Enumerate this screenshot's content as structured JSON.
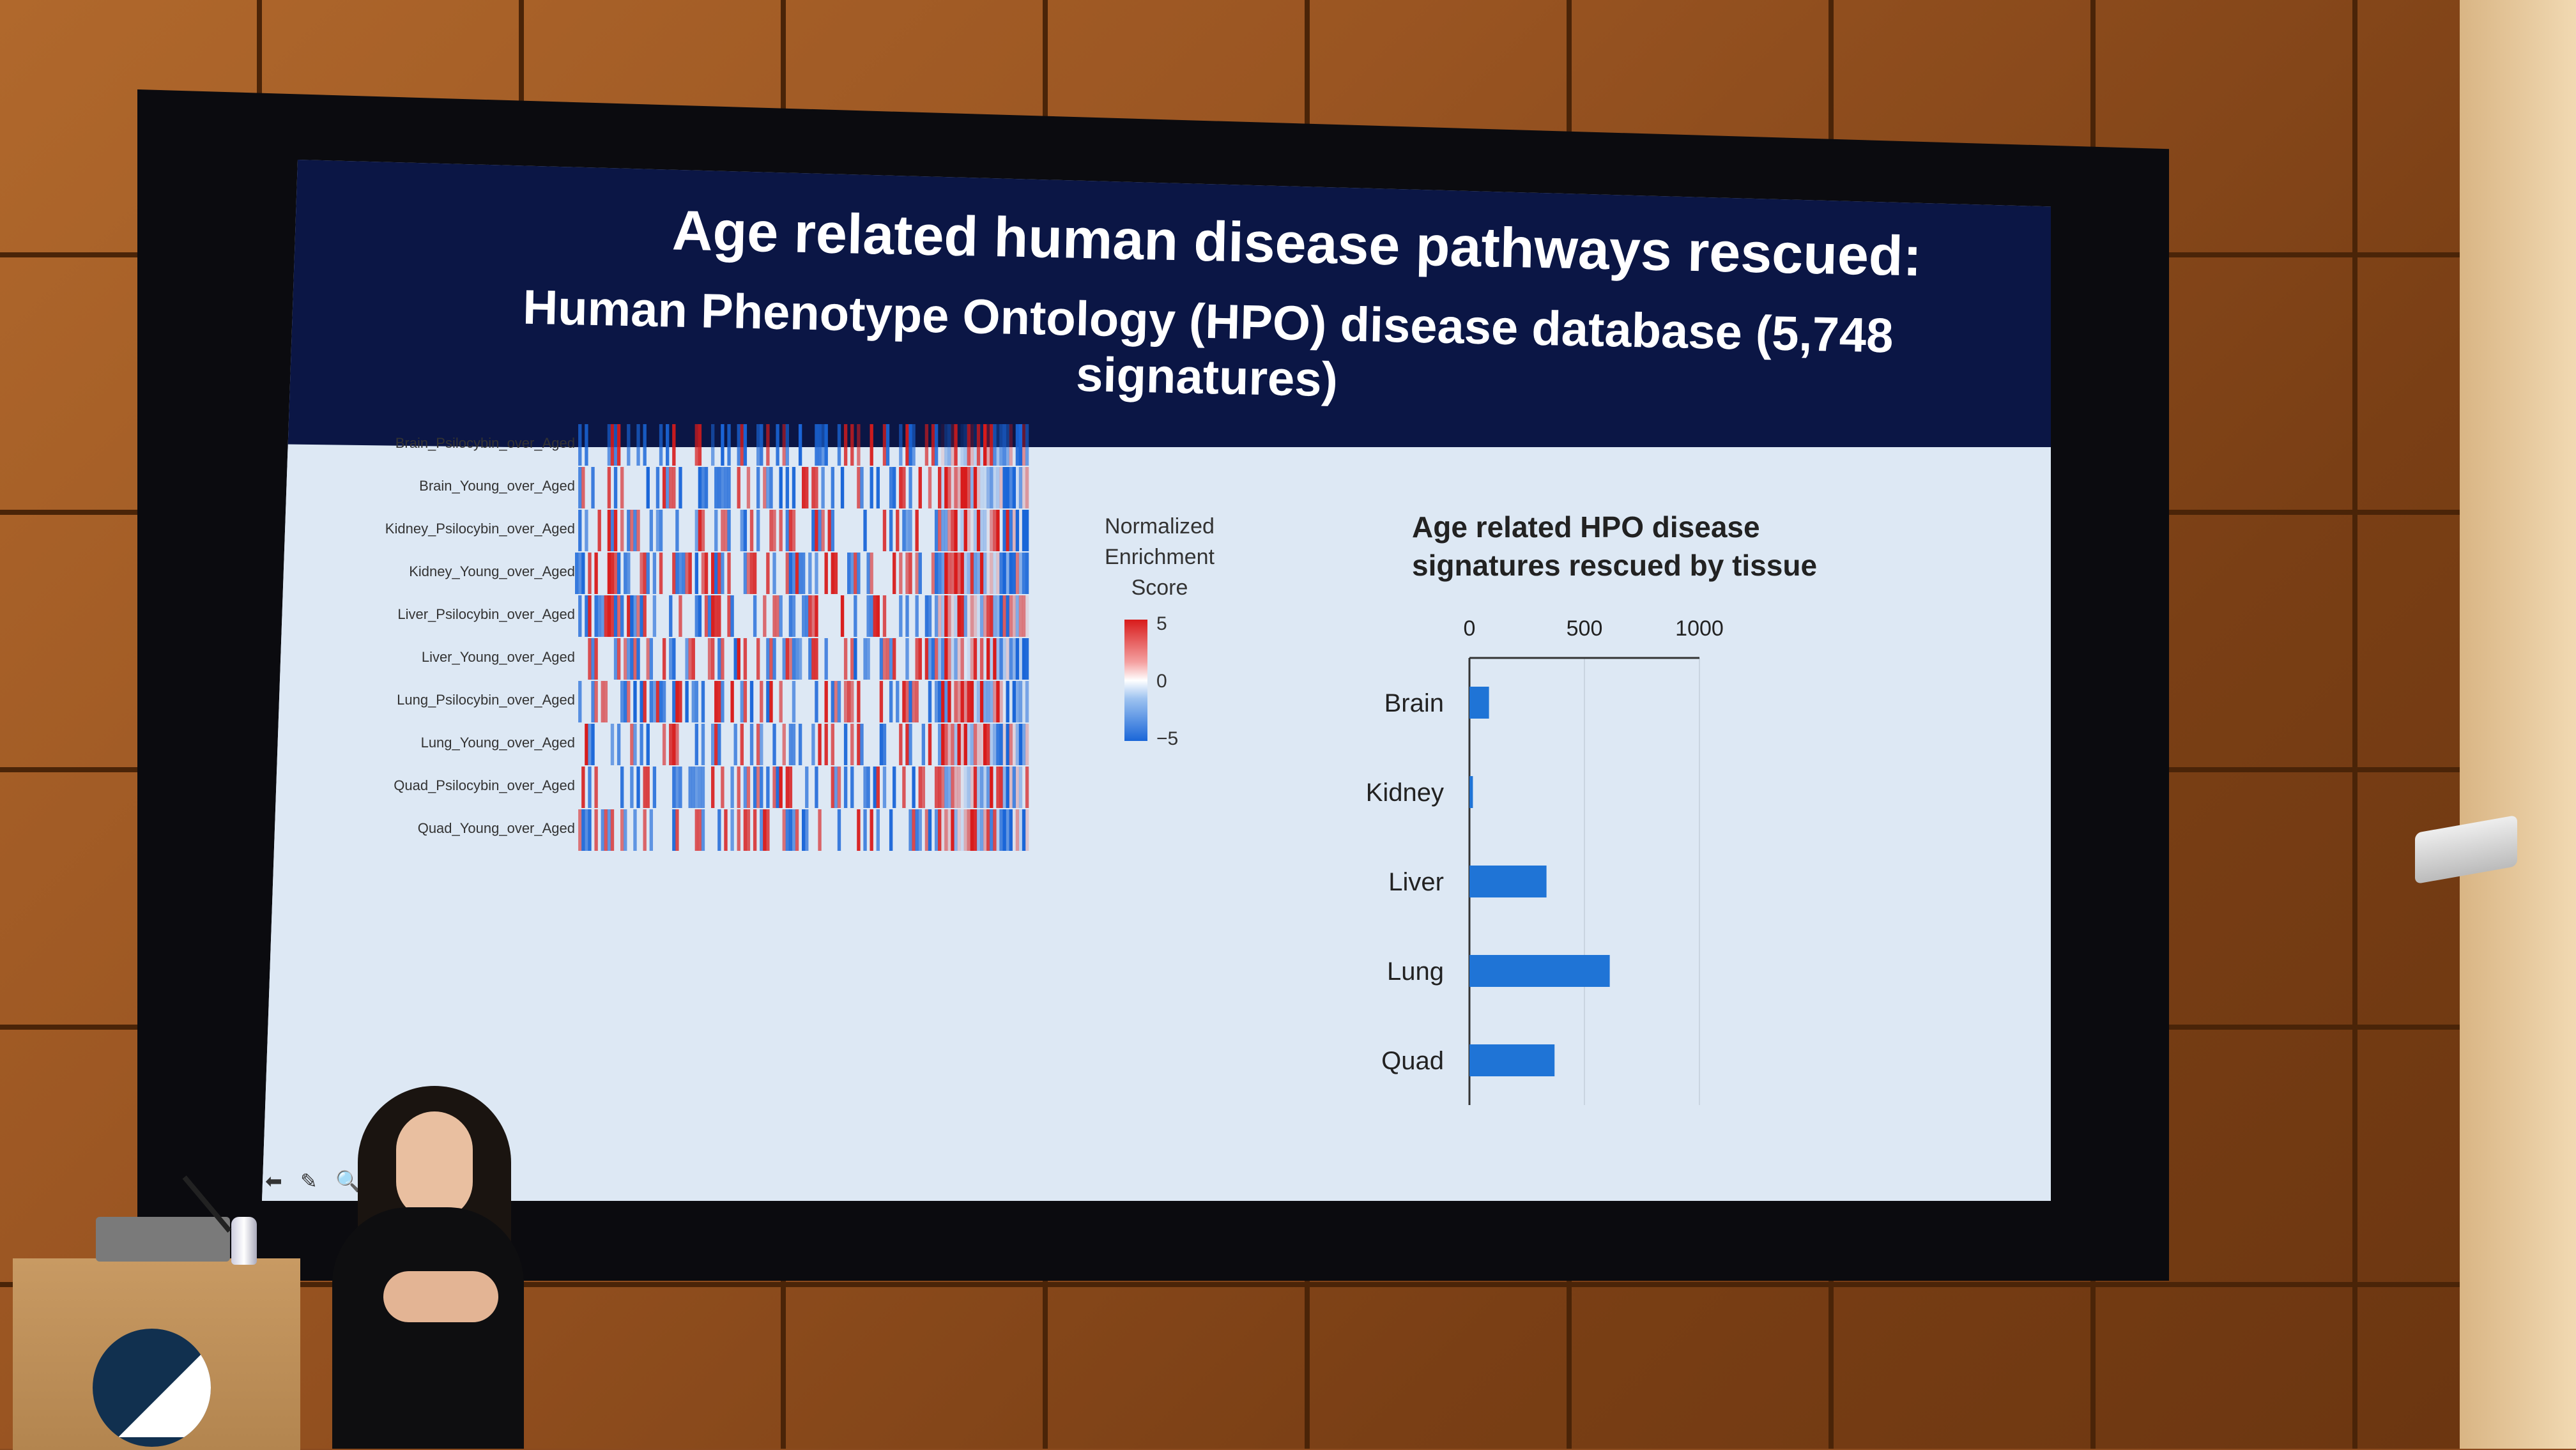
{
  "slide": {
    "title": "Age related human disease pathways rescued:",
    "subtitle": "Human Phenotype Ontology (HPO) disease database (5,748 signatures)"
  },
  "heatmap": {
    "row_labels": [
      "Brain_Psilocybin_over_Aged",
      "Brain_Young_over_Aged",
      "Kidney_Psilocybin_over_Aged",
      "Kidney_Young_over_Aged",
      "Liver_Psilocybin_over_Aged",
      "Liver_Young_over_Aged",
      "Lung_Psilocybin_over_Aged",
      "Lung_Young_over_Aged",
      "Quad_Psilocybin_over_Aged",
      "Quad_Young_over_Aged"
    ],
    "legend": {
      "title_lines": [
        "Normalized",
        "Enrichment",
        "Score"
      ],
      "ticks": [
        "5",
        "0",
        "−5"
      ]
    },
    "colors": {
      "high": "#d81b1b",
      "mid": "#ffffff",
      "low": "#1a66d8"
    }
  },
  "chart_data": {
    "type": "bar",
    "orientation": "horizontal",
    "title": "Age related HPO disease signatures rescued by tissue",
    "title_lines": [
      "Age related HPO disease",
      "signatures rescued by tissue"
    ],
    "categories": [
      "Brain",
      "Kidney",
      "Liver",
      "Lung",
      "Quad"
    ],
    "values": [
      85,
      15,
      335,
      610,
      370
    ],
    "xlim": [
      0,
      1000
    ],
    "xticks": [
      "0",
      "500",
      "1000"
    ],
    "grid": true,
    "bar_color": "#1f74d6"
  },
  "controls": {
    "icons": [
      "back-icon",
      "pen-icon",
      "zoom-icon",
      "forward-icon"
    ]
  }
}
